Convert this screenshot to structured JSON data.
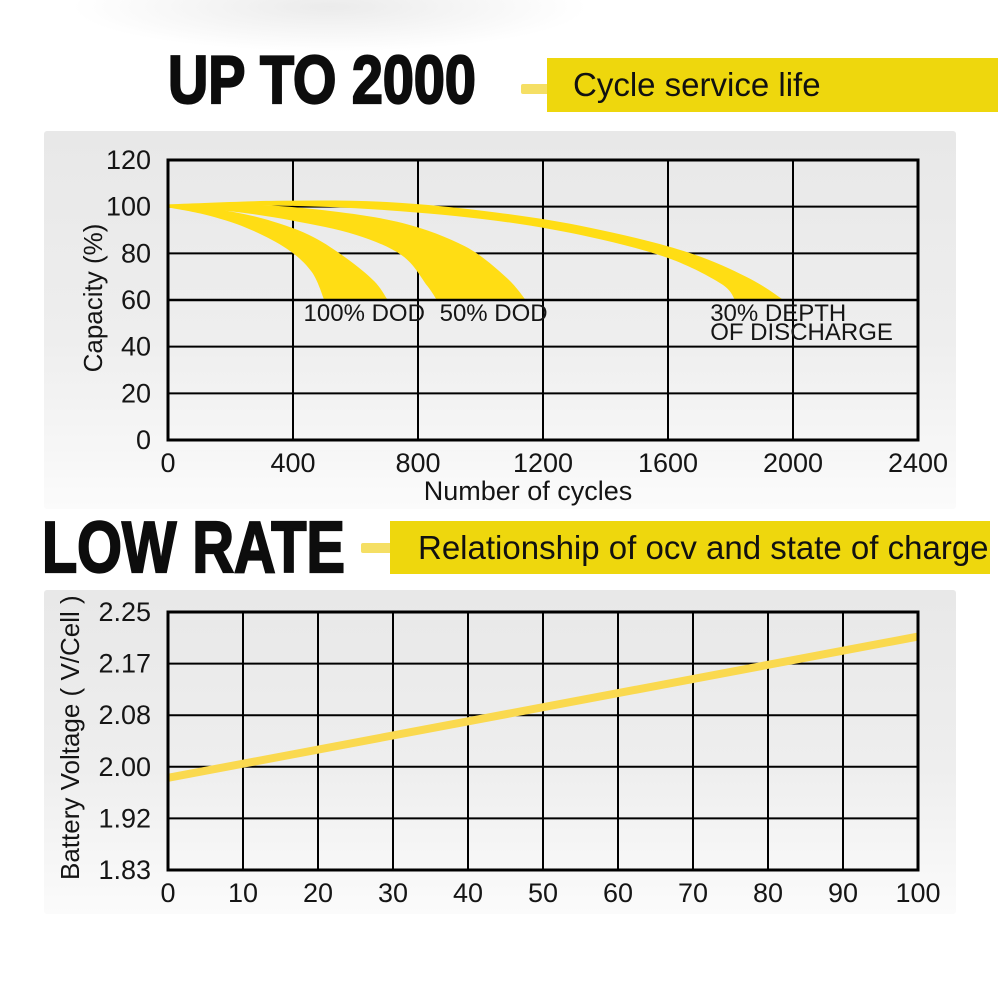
{
  "page": {
    "section1": {
      "title": "UP TO 2000",
      "banner": "Cycle service life"
    },
    "section2": {
      "title": "LOW RATE",
      "banner": "Relationship of ocv and state of charge"
    }
  },
  "colors": {
    "band_yellow": "#FFDD14",
    "banner_yellow": "#EED70D",
    "connector_yellow": "#F5DF64",
    "line_yellow": "#FAD94F",
    "grid_black": "#000000",
    "ink": "#141414"
  },
  "chart_data": [
    {
      "type": "area",
      "title": "Cycle service life",
      "xlabel": "Number of cycles",
      "ylabel": "Capacity (%)",
      "xlim": [
        0,
        2400
      ],
      "ylim": [
        0,
        120
      ],
      "x_ticks": [
        0,
        400,
        800,
        1200,
        1600,
        2000,
        2400
      ],
      "y_ticks": [
        0,
        20,
        40,
        60,
        80,
        100,
        120
      ],
      "grid": "on",
      "legend": "none",
      "series": [
        {
          "name": "100% DOD",
          "upper": [
            [
              0,
              100.3
            ],
            [
              150,
              99
            ],
            [
              300,
              95
            ],
            [
              450,
              88
            ],
            [
              570,
              78
            ],
            [
              660,
              68
            ],
            [
              703,
              60
            ]
          ],
          "lower": [
            [
              0,
              99.7
            ],
            [
              120,
              96.5
            ],
            [
              250,
              91
            ],
            [
              380,
              82
            ],
            [
              460,
              72
            ],
            [
              500,
              60
            ]
          ]
        },
        {
          "name": "50% DOD",
          "upper": [
            [
              0,
              100.6
            ],
            [
              250,
              101
            ],
            [
              500,
              98.5
            ],
            [
              750,
              93
            ],
            [
              950,
              83
            ],
            [
              1080,
              70
            ],
            [
              1145,
              60
            ]
          ],
          "lower": [
            [
              0,
              99.8
            ],
            [
              200,
              98
            ],
            [
              400,
              94
            ],
            [
              600,
              88
            ],
            [
              750,
              79
            ],
            [
              830,
              66
            ],
            [
              860,
              60
            ]
          ]
        },
        {
          "name": "30% DEPTH OF DISCHARGE",
          "upper": [
            [
              0,
              101
            ],
            [
              350,
              102.5
            ],
            [
              700,
              102
            ],
            [
              1050,
              97.5
            ],
            [
              1350,
              91
            ],
            [
              1650,
              81
            ],
            [
              1850,
              70
            ],
            [
              1970,
              60
            ]
          ],
          "lower": [
            [
              0,
              100
            ],
            [
              350,
              100.5
            ],
            [
              700,
              98.5
            ],
            [
              1050,
              94
            ],
            [
              1350,
              87
            ],
            [
              1600,
              78
            ],
            [
              1770,
              67
            ],
            [
              1815,
              60
            ]
          ]
        }
      ],
      "annotations": [
        {
          "lines": [
            "100% DOD"
          ],
          "x": 628,
          "y": 53.5,
          "anchor": "middle"
        },
        {
          "lines": [
            "50% DOD"
          ],
          "x": 1042,
          "y": 53.5,
          "anchor": "middle"
        },
        {
          "lines": [
            "30% DEPTH",
            "OF DISCHARGE"
          ],
          "x": 1735,
          "y": 53.5,
          "anchor": "start"
        }
      ]
    },
    {
      "type": "line",
      "title": "Relationship of ocv and state of charge",
      "xlabel": "",
      "ylabel": "Battery Voltage ( V/Cell )",
      "xlim": [
        0,
        100
      ],
      "ylim": [
        1.83,
        2.25
      ],
      "x_ticks": [
        0,
        10,
        20,
        30,
        40,
        50,
        60,
        70,
        80,
        90,
        100
      ],
      "y_tick_labels": [
        "2.25",
        "2.17",
        "2.08",
        "2.00",
        "1.92",
        "1.83"
      ],
      "grid": "on",
      "legend": "none",
      "points": [
        [
          0,
          1.98
        ],
        [
          100,
          2.21
        ]
      ]
    }
  ]
}
